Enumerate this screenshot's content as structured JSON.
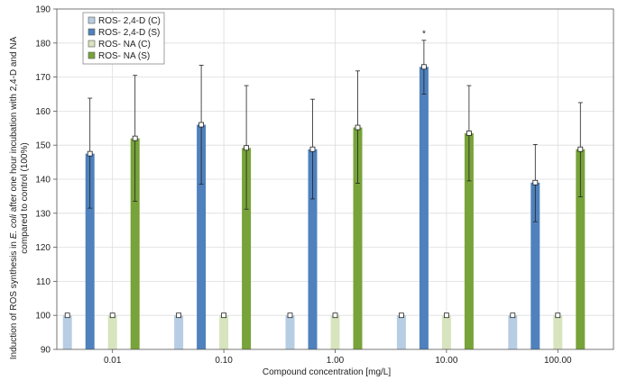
{
  "chart_data": {
    "type": "bar",
    "categories": [
      "0.01",
      "0.10",
      "1.00",
      "10.00",
      "100.00"
    ],
    "xlabel": "Compound concentration [mg/L]",
    "ylabel_line1": "Induction of ROS synthesis in",
    "ylabel_italic": "E. coli",
    "ylabel_line1_end": "after one hour incubation with 2,4-D and NA",
    "ylabel_line2": "compared to control (100%)",
    "ylim": [
      90,
      190
    ],
    "yticks": [
      90,
      100,
      110,
      120,
      130,
      140,
      150,
      160,
      170,
      180,
      190
    ],
    "grid": true,
    "legend_position": "top-left",
    "series": [
      {
        "name": "ROS- 2,4-D (C)",
        "color": "#b7cde3",
        "values": [
          100,
          100,
          100,
          100,
          100
        ],
        "err_low": [
          100,
          100,
          100,
          100,
          100
        ],
        "err_high": [
          100,
          100,
          100,
          100,
          100
        ]
      },
      {
        "name": "ROS- 2,4-D (S)",
        "color": "#4f81bd",
        "values": [
          147.5,
          156,
          148.8,
          173,
          139
        ],
        "err_low": [
          131.5,
          138.5,
          134.2,
          165,
          127.5
        ],
        "err_high": [
          163.8,
          173.5,
          163.5,
          180.8,
          150.2
        ]
      },
      {
        "name": "ROS- NA (C)",
        "color": "#d7e4bd",
        "values": [
          100,
          100,
          100,
          100,
          100
        ],
        "err_low": [
          100,
          100,
          100,
          100,
          100
        ],
        "err_high": [
          100,
          100,
          100,
          100,
          100
        ]
      },
      {
        "name": "ROS- NA (S)",
        "color": "#77a33a",
        "values": [
          152,
          149.2,
          155.2,
          153.5,
          148.8
        ],
        "err_low": [
          133.5,
          131.2,
          138.8,
          139.5,
          134.8
        ],
        "err_high": [
          170.5,
          167.5,
          171.8,
          167.5,
          162.5
        ]
      }
    ],
    "annotations": [
      {
        "text": "*",
        "category": "10.00",
        "series": "ROS- 2,4-D (S)",
        "y": 183
      }
    ]
  }
}
